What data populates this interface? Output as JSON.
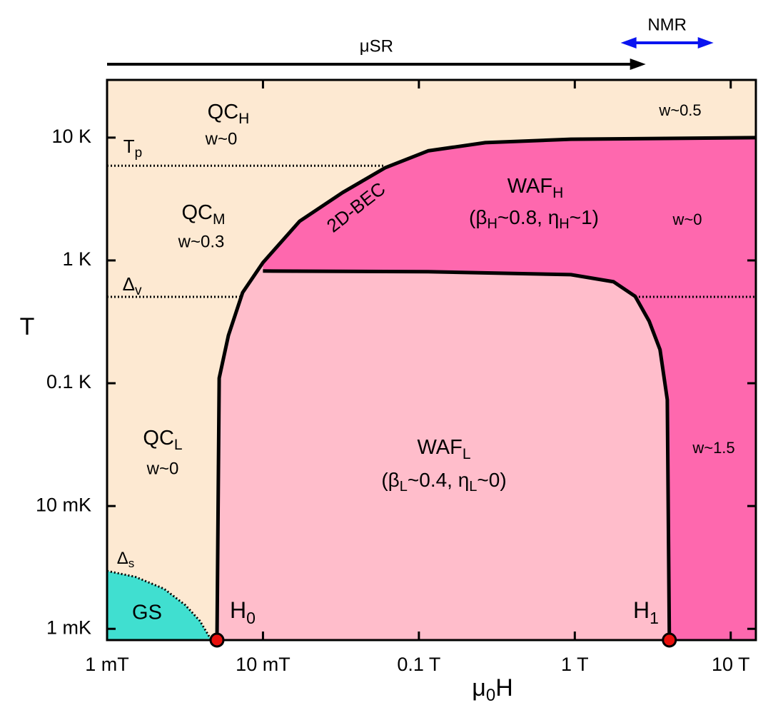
{
  "chart_data": {
    "type": "phase-diagram",
    "x_label": [
      "μ",
      "0",
      "H"
    ],
    "y_label": "T",
    "xscale": "log",
    "yscale": "log",
    "xlim": [
      0.001,
      14.5
    ],
    "ylim": [
      0.00081,
      29.5
    ],
    "xticks": [
      {
        "value": 0.001,
        "label": "1 mT"
      },
      {
        "value": 0.01,
        "label": "10 mT"
      },
      {
        "value": 0.1,
        "label": "0.1 T"
      },
      {
        "value": 1,
        "label": "1 T"
      },
      {
        "value": 10,
        "label": "10 T"
      }
    ],
    "yticks": [
      {
        "value": 0.001,
        "label": "1 mK"
      },
      {
        "value": 0.01,
        "label": "10 mK"
      },
      {
        "value": 0.1,
        "label": "0.1 K"
      },
      {
        "value": 1,
        "label": "1 K"
      },
      {
        "value": 10,
        "label": "10 K"
      }
    ],
    "grid": false,
    "colors": {
      "qc": "#fde9d2",
      "waf_h": "#fe68ae",
      "waf_l": "#ffbdcb",
      "gs": "#40dfd0",
      "boundary": "#000000",
      "point": "#e8100c"
    },
    "boundaries": {
      "outer": {
        "x": [
          0.00507,
          0.00524,
          0.006,
          0.0074,
          0.01,
          0.0172,
          0.0324,
          0.061,
          0.1146,
          0.267,
          0.944,
          14.5
        ],
        "y": [
          0.00081,
          0.11,
          0.245,
          0.547,
          0.96,
          2.09,
          3.57,
          5.7,
          7.8,
          9.1,
          9.7,
          10
        ]
      },
      "inner": {
        "x": [
          0.01,
          0.1146,
          0.944,
          1.775,
          2.44,
          3.0,
          3.52,
          3.92,
          4.04
        ],
        "y": [
          0.82,
          0.81,
          0.766,
          0.67,
          0.51,
          0.32,
          0.1876,
          0.0734,
          0.00081
        ]
      },
      "gs": {
        "label": [
          "Δ",
          "s"
        ],
        "x": [
          0.001,
          0.00152,
          0.00232,
          0.00318,
          0.00394,
          0.00461
        ],
        "y": [
          0.00296,
          0.00265,
          0.00212,
          0.00156,
          0.00116,
          0.00083
        ]
      }
    },
    "crossovers": [
      {
        "label": [
          "T",
          "p"
        ],
        "y": 5.9,
        "segments": [
          [
            0.001,
            0.061
          ]
        ]
      },
      {
        "label": [
          "Δ",
          "v"
        ],
        "y": 0.505,
        "segments": [
          [
            0.001,
            0.0074
          ],
          [
            2.44,
            14.5
          ]
        ]
      }
    ],
    "critical_points": [
      {
        "label": [
          "H",
          "0"
        ],
        "x": 0.00507,
        "y": 0.00081
      },
      {
        "label": [
          "H",
          "1"
        ],
        "x": 4.04,
        "y": 0.00081
      }
    ],
    "phases": [
      {
        "name": [
          "QC",
          "H"
        ],
        "w": "w~0"
      },
      {
        "name": [
          "QC",
          "M"
        ],
        "w": "w~0.3"
      },
      {
        "name": [
          "QC",
          "L"
        ],
        "w": "w~0"
      },
      {
        "name": [
          "WAF",
          "H"
        ],
        "params": [
          "(β",
          "H",
          "~0.8, η",
          "H",
          "~1)"
        ]
      },
      {
        "name": [
          "WAF",
          "L"
        ],
        "params": [
          "(β",
          "L",
          "~0.4, η",
          "L",
          "~0)"
        ]
      },
      {
        "name": "GS"
      }
    ],
    "bec_label": "2D-BEC",
    "w_annotations": [
      "w~0.5",
      "w~0",
      "w~1.5"
    ],
    "annotation_color": "#1414e6",
    "probes": [
      {
        "label": "μSR",
        "x": [
          0.001,
          2.85
        ],
        "color": "#000000",
        "heads": "end"
      },
      {
        "label": "NMR",
        "x": [
          1.97,
          7.76
        ],
        "color": "#0a14f0",
        "heads": "both"
      }
    ]
  }
}
